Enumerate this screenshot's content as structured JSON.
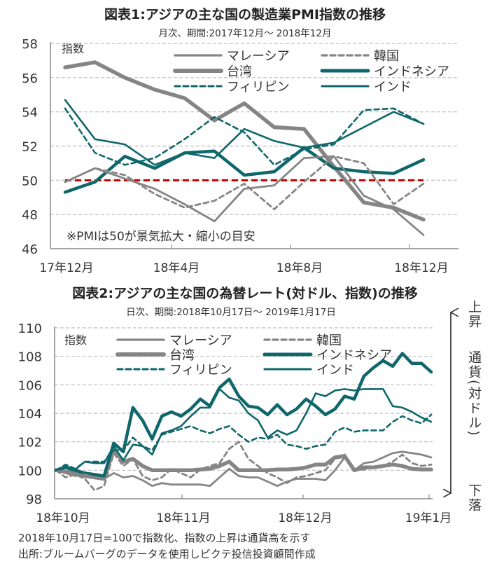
{
  "colors": {
    "gray": "#858585",
    "teal": "#0f676b",
    "red": "#c00000",
    "grid": "#bdbdbd"
  },
  "chart_data": [
    {
      "type": "line",
      "title": "図表1:アジアの主な国の製造業PMI指数の推移",
      "subtitle": "月次、期間:2017年12月〜 2018年12月",
      "ylabel": "指数",
      "ylim": [
        46,
        58
      ],
      "yticks": [
        "46",
        "48",
        "50",
        "52",
        "54",
        "56",
        "58"
      ],
      "xticks": [
        "17年12月",
        "18年4月",
        "18年8月",
        "18年12月"
      ],
      "x": [
        "2017-12",
        "2018-01",
        "2018-02",
        "2018-03",
        "2018-04",
        "2018-05",
        "2018-06",
        "2018-07",
        "2018-08",
        "2018-09",
        "2018-10",
        "2018-11",
        "2018-12"
      ],
      "reference_line": 50,
      "annotation": "※PMIは50が景気拡大・縮小の目安",
      "legend_position": "top-right",
      "series": [
        {
          "name": "マレーシア",
          "style": "gray-thin",
          "values": [
            49.9,
            50.7,
            50.1,
            49.5,
            48.6,
            47.6,
            49.5,
            49.7,
            51.3,
            51.4,
            49.1,
            48.3,
            46.8
          ]
        },
        {
          "name": "韓国",
          "style": "gray-dashed",
          "values": [
            49.9,
            50.7,
            50.3,
            49.2,
            48.4,
            48.8,
            49.8,
            48.3,
            49.9,
            51.4,
            51.0,
            48.6,
            49.8
          ]
        },
        {
          "name": "台湾",
          "style": "gray-thick",
          "values": [
            56.6,
            56.9,
            56.0,
            55.3,
            54.8,
            53.5,
            54.5,
            53.1,
            53.0,
            50.8,
            48.7,
            48.4,
            47.7
          ]
        },
        {
          "name": "インドネシア",
          "style": "teal-thick",
          "values": [
            49.3,
            49.9,
            51.4,
            50.7,
            51.6,
            51.7,
            50.3,
            50.5,
            51.9,
            50.7,
            50.5,
            50.4,
            51.2
          ]
        },
        {
          "name": "フィリピン",
          "style": "teal-dashed",
          "values": [
            54.2,
            51.6,
            50.9,
            51.3,
            52.4,
            53.7,
            52.8,
            50.9,
            51.8,
            52.1,
            54.1,
            54.2,
            53.3
          ]
        },
        {
          "name": "インド",
          "style": "teal-thin",
          "values": [
            54.7,
            52.4,
            52.1,
            50.9,
            51.6,
            51.3,
            53.0,
            52.3,
            51.9,
            52.2,
            53.1,
            54.0,
            53.3
          ]
        }
      ]
    },
    {
      "type": "line",
      "title": "図表2:アジアの主な国の為替レート(対ドル、指数)の推移",
      "subtitle": "日次、期間:2018年10月17日〜 2019年1月17日",
      "ylabel": "指数",
      "ylim": [
        98,
        110
      ],
      "yticks": [
        "98",
        "100",
        "102",
        "104",
        "106",
        "108",
        "110"
      ],
      "xticks": [
        "18年10月",
        "18年11月",
        "18年12月",
        "19年1月"
      ],
      "side_label": {
        "top": "上昇",
        "middle": "通貨(対ドル)",
        "bottom": "下落"
      },
      "legend_position": "top-left",
      "series": [
        {
          "name": "マレーシア",
          "style": "gray-thin",
          "values": [
            100,
            99.8,
            99.6,
            99.7,
            99.5,
            99.4,
            99.8,
            99.5,
            99.6,
            99.3,
            98.9,
            99.1,
            99.0,
            99.0,
            99.0,
            99.0,
            98.9,
            99.5,
            100.1,
            99.6,
            99.5,
            99.5,
            99.2,
            98.9,
            99.2,
            99.4,
            99.4,
            99.4,
            99.3,
            100.0,
            100.9,
            100.0,
            100.5,
            100.6,
            100.9,
            101.2,
            101.3,
            101.2,
            101.1,
            100.9
          ]
        },
        {
          "name": "韓国",
          "style": "gray-dashed",
          "values": [
            100,
            99.5,
            99.7,
            99.4,
            98.6,
            98.9,
            101.2,
            100.3,
            100.8,
            99.6,
            99.3,
            99.5,
            100.1,
            99.8,
            99.5,
            100.05,
            100.3,
            100.5,
            101.5,
            102.0,
            100.8,
            100.3,
            99.8,
            99.5,
            99.1,
            99.5,
            99.6,
            99.8,
            100.0,
            100.8,
            101.1,
            100.05,
            100.05,
            100.2,
            100.3,
            100.6,
            101.1,
            100.5,
            100.3,
            100.4
          ]
        },
        {
          "name": "台湾",
          "style": "gray-thick",
          "values": [
            100,
            99.9,
            99.8,
            99.6,
            99.5,
            99.4,
            101.5,
            100.6,
            100.8,
            100.3,
            100.0,
            100.0,
            100.0,
            100.0,
            100.0,
            100.05,
            100.1,
            100.3,
            100.6,
            100.0,
            100.0,
            100.0,
            100.0,
            100.05,
            100.05,
            100.1,
            100.2,
            100.4,
            100.4,
            100.9,
            101.0,
            100.0,
            100.2,
            100.2,
            100.3,
            100.4,
            100.3,
            100.1,
            100.05,
            100.05
          ]
        },
        {
          "name": "インドネシア",
          "style": "teal-thick",
          "values": [
            100,
            100.2,
            100.0,
            99.8,
            99.7,
            99.6,
            101.9,
            101.3,
            104.4,
            103.5,
            102.2,
            103.8,
            104.1,
            103.8,
            104.3,
            105.0,
            104.5,
            105.8,
            106.4,
            105.2,
            104.5,
            104.4,
            103.9,
            104.6,
            103.9,
            104.3,
            105.0,
            104.5,
            103.9,
            104.3,
            105.2,
            105.0,
            106.6,
            107.2,
            107.7,
            107.3,
            108.2,
            107.5,
            107.5,
            106.9
          ]
        },
        {
          "name": "フィリピン",
          "style": "teal-dashed",
          "values": [
            100,
            100.4,
            100.1,
            100.6,
            100.6,
            100.6,
            101.4,
            101.4,
            102.3,
            101.7,
            101.4,
            102.5,
            102.7,
            102.9,
            103.1,
            102.8,
            102.6,
            102.9,
            103.1,
            102.5,
            102.0,
            102.3,
            102.2,
            102.5,
            101.8,
            101.7,
            101.5,
            101.7,
            101.8,
            102.7,
            103.0,
            102.7,
            102.8,
            102.8,
            102.8,
            103.4,
            103.8,
            103.5,
            103.3,
            103.9
          ]
        },
        {
          "name": "インド",
          "style": "teal-thin",
          "values": [
            100,
            100.3,
            100.05,
            100.6,
            100.5,
            100.5,
            101.7,
            100.7,
            101.8,
            101.7,
            101.1,
            102.6,
            102.8,
            103.1,
            103.8,
            104.4,
            104.4,
            105.7,
            105.1,
            104.9,
            104.0,
            103.5,
            102.3,
            102.8,
            102.5,
            102.8,
            104.0,
            105.4,
            105.2,
            105.6,
            105.7,
            105.6,
            105.7,
            105.7,
            105.7,
            104.5,
            104.4,
            104.1,
            103.7,
            103.4
          ]
        }
      ]
    }
  ],
  "notes": [
    "2018年10月17日=100で指数化、指数の上昇は通貨高を示す",
    "出所:ブルームバーグのデータを使用しピクテ投信投資顧問作成"
  ]
}
